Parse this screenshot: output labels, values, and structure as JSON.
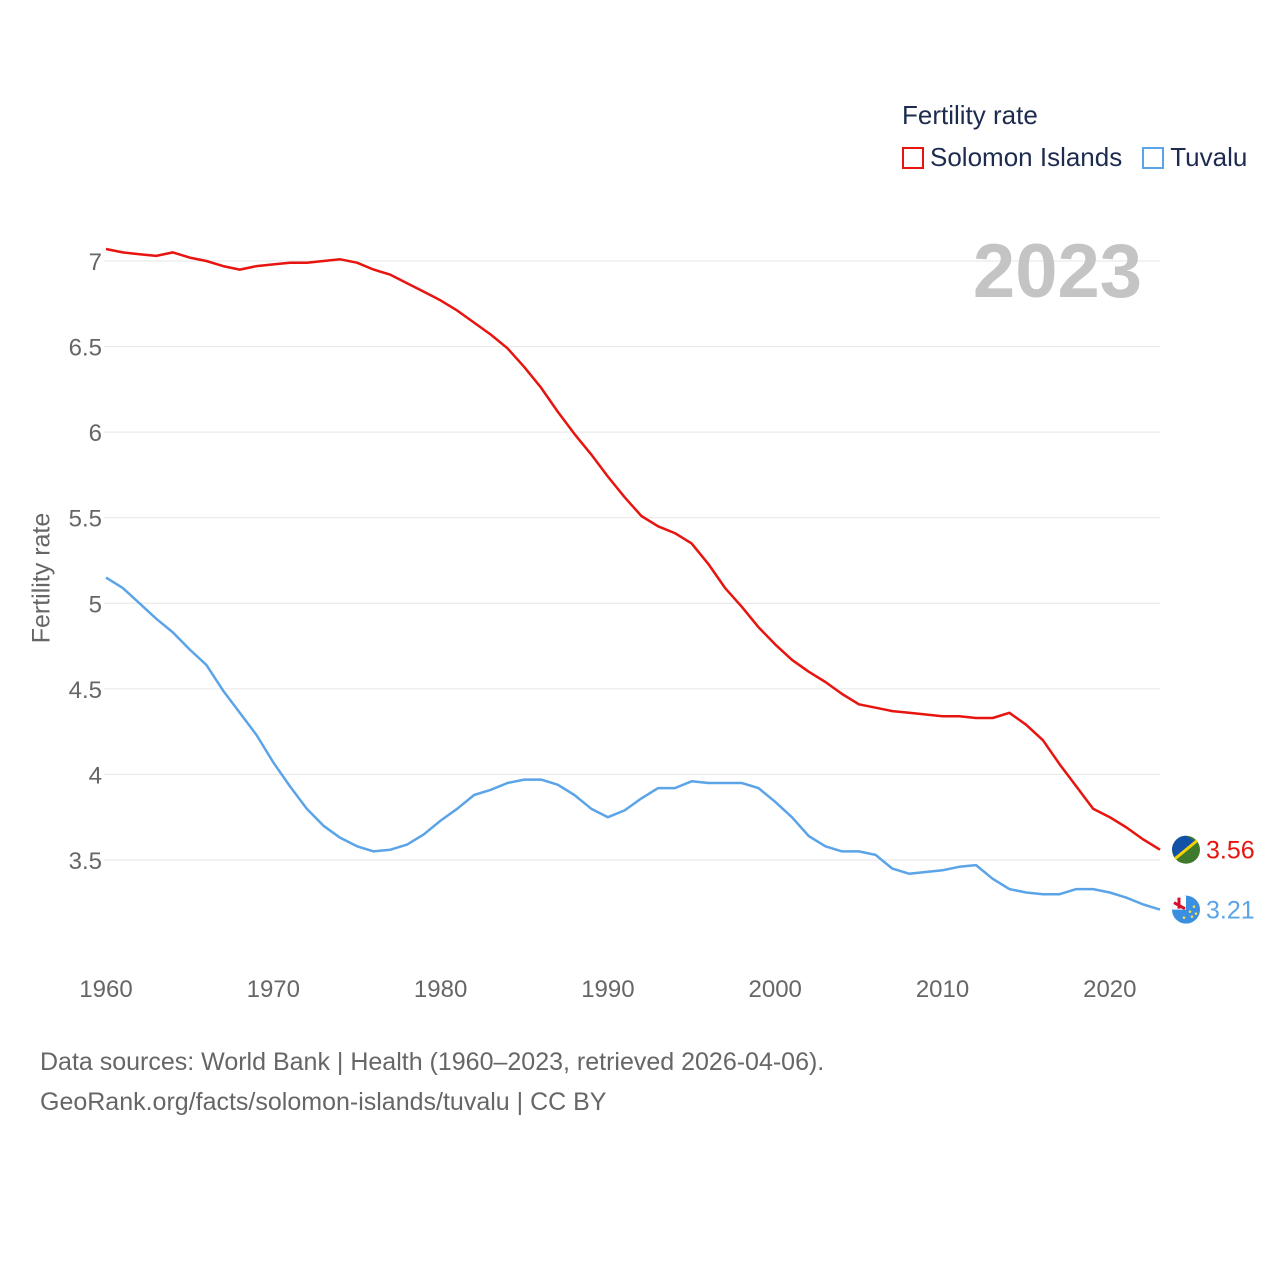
{
  "legend": {
    "title": "Fertility rate",
    "items": [
      {
        "label": "Solomon Islands",
        "color": "#e8140f"
      },
      {
        "label": "Tuvalu",
        "color": "#5ba4e8"
      }
    ]
  },
  "year_stamp": "2023",
  "footer": {
    "line1": "Data sources: World Bank | Health (1960–2023, retrieved 2026-04-06).",
    "line2": "GeoRank.org/facts/solomon-islands/tuvalu | CC BY"
  },
  "chart_data": {
    "type": "line",
    "title": "Fertility rate",
    "xlabel": "",
    "ylabel": "Fertility rate",
    "xlim": [
      1960,
      2023
    ],
    "ylim": [
      3.0,
      7.2
    ],
    "grid": true,
    "legend_position": "top-right",
    "x_ticks": [
      1960,
      1970,
      1980,
      1990,
      2000,
      2010,
      2020
    ],
    "y_ticks": [
      3.5,
      4,
      4.5,
      5,
      5.5,
      6,
      6.5,
      7
    ],
    "x": [
      1960,
      1961,
      1962,
      1963,
      1964,
      1965,
      1966,
      1967,
      1968,
      1969,
      1970,
      1971,
      1972,
      1973,
      1974,
      1975,
      1976,
      1977,
      1978,
      1979,
      1980,
      1981,
      1982,
      1983,
      1984,
      1985,
      1986,
      1987,
      1988,
      1989,
      1990,
      1991,
      1992,
      1993,
      1994,
      1995,
      1996,
      1997,
      1998,
      1999,
      2000,
      2001,
      2002,
      2003,
      2004,
      2005,
      2006,
      2007,
      2008,
      2009,
      2010,
      2011,
      2012,
      2013,
      2014,
      2015,
      2016,
      2017,
      2018,
      2019,
      2020,
      2021,
      2022,
      2023
    ],
    "series": [
      {
        "name": "Solomon Islands",
        "color": "#e8140f",
        "end_label": "3.56",
        "values": [
          7.07,
          7.05,
          7.04,
          7.03,
          7.05,
          7.02,
          7.0,
          6.97,
          6.95,
          6.97,
          6.98,
          6.99,
          6.99,
          7.0,
          7.01,
          6.99,
          6.95,
          6.92,
          6.87,
          6.82,
          6.77,
          6.71,
          6.64,
          6.57,
          6.49,
          6.38,
          6.26,
          6.12,
          5.99,
          5.87,
          5.74,
          5.62,
          5.51,
          5.45,
          5.41,
          5.35,
          5.23,
          5.09,
          4.98,
          4.86,
          4.76,
          4.67,
          4.6,
          4.54,
          4.47,
          4.41,
          4.39,
          4.37,
          4.36,
          4.35,
          4.34,
          4.34,
          4.33,
          4.33,
          4.36,
          4.29,
          4.2,
          4.06,
          3.93,
          3.8,
          3.75,
          3.69,
          3.62,
          3.56
        ]
      },
      {
        "name": "Tuvalu",
        "color": "#5ba4e8",
        "end_label": "3.21",
        "values": [
          5.15,
          5.09,
          5.0,
          4.91,
          4.83,
          4.73,
          4.64,
          4.49,
          4.36,
          4.23,
          4.07,
          3.93,
          3.8,
          3.7,
          3.63,
          3.58,
          3.55,
          3.56,
          3.59,
          3.65,
          3.73,
          3.8,
          3.88,
          3.91,
          3.95,
          3.97,
          3.97,
          3.94,
          3.88,
          3.8,
          3.75,
          3.79,
          3.86,
          3.92,
          3.92,
          3.96,
          3.95,
          3.95,
          3.95,
          3.92,
          3.84,
          3.75,
          3.64,
          3.58,
          3.55,
          3.55,
          3.53,
          3.45,
          3.42,
          3.43,
          3.44,
          3.46,
          3.47,
          3.39,
          3.33,
          3.31,
          3.3,
          3.3,
          3.33,
          3.33,
          3.31,
          3.28,
          3.24,
          3.21
        ]
      }
    ]
  }
}
